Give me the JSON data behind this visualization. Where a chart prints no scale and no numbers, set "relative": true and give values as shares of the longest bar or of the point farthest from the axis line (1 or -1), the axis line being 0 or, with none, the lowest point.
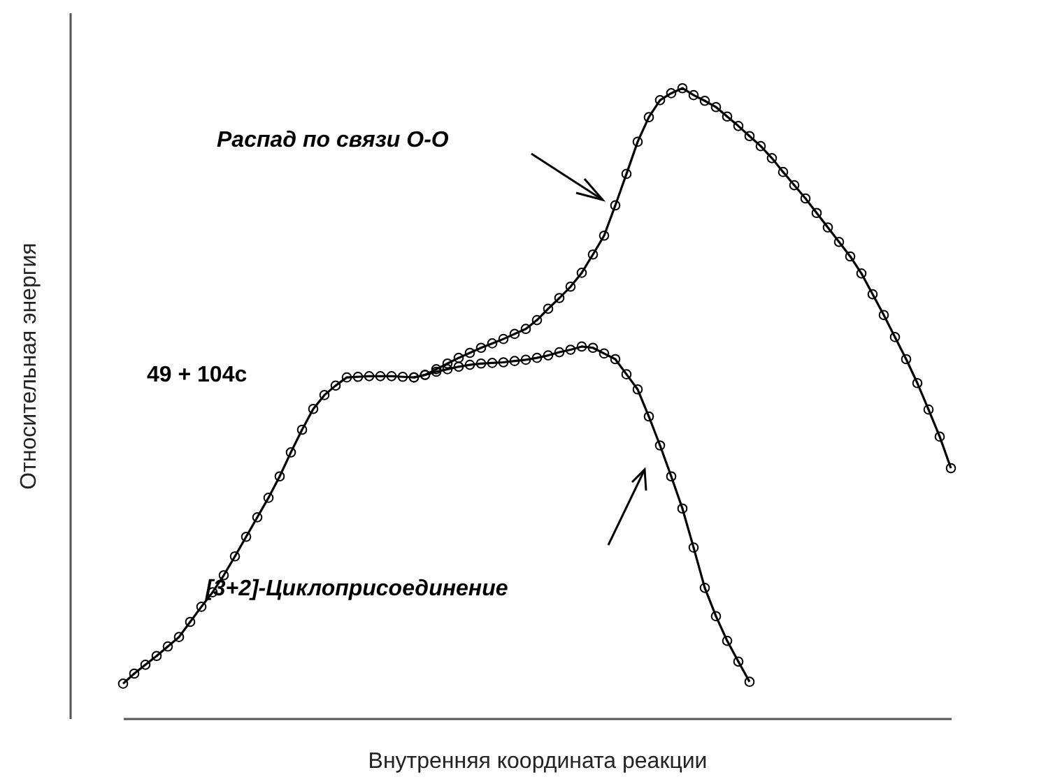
{
  "chart_data": {
    "type": "line",
    "relative": true,
    "xlabel": "Внутренняя координата реакции",
    "ylabel": "Относительная энергия",
    "marker": "circle",
    "line_style": "solid",
    "grid": false,
    "categories": [
      null,
      null,
      null,
      null,
      null,
      null,
      null,
      null,
      null,
      null,
      null,
      null,
      null,
      null,
      null,
      null,
      null,
      null,
      null,
      null,
      null,
      null,
      null,
      null,
      null,
      null,
      null,
      null,
      null,
      null,
      null,
      null,
      null,
      null,
      null,
      null,
      null,
      null,
      null,
      null,
      null,
      null,
      null,
      null,
      null,
      null,
      null,
      null,
      null,
      null,
      null,
      null,
      null,
      null,
      null,
      null,
      null,
      null,
      null,
      null,
      null,
      null,
      null,
      null,
      null,
      null,
      null,
      null,
      null,
      null,
      null,
      null,
      null,
      null,
      null
    ],
    "series": [
      {
        "color": "#000000",
        "values": [
          0.055,
          0.071,
          0.085,
          0.099,
          0.114,
          0.129,
          0.153,
          0.177,
          0.2,
          0.227,
          0.257,
          0.288,
          0.319,
          0.35,
          0.384,
          0.422,
          0.458,
          0.491,
          0.513,
          0.528,
          0.541,
          0.542,
          0.543,
          0.543,
          0.543,
          0.542,
          0.541,
          0.545,
          0.554,
          0.563,
          0.572,
          0.58,
          0.588,
          0.595,
          0.602,
          0.61,
          0.618,
          0.632,
          0.65,
          0.667,
          0.685,
          0.707,
          0.736,
          0.766,
          0.814,
          0.864,
          0.915,
          0.954,
          0.981,
          0.992,
          1,
          0.989,
          0.98,
          0.97,
          0.955,
          0.94,
          0.924,
          0.908,
          0.889,
          0.867,
          0.846,
          0.825,
          0.802,
          0.779,
          0.756,
          0.733,
          0.706,
          0.673,
          0.64,
          0.605,
          0.57,
          0.532,
          0.49,
          0.447,
          0.397
        ]
      },
      {
        "color": "#000000",
        "values": [
          null,
          null,
          null,
          null,
          null,
          null,
          null,
          null,
          null,
          null,
          null,
          null,
          null,
          null,
          null,
          null,
          null,
          null,
          null,
          null,
          null,
          null,
          null,
          null,
          null,
          null,
          0.541,
          0.545,
          0.55,
          0.554,
          0.558,
          0.561,
          0.563,
          0.564,
          0.565,
          0.567,
          0.569,
          0.572,
          0.576,
          0.581,
          0.585,
          0.59,
          0.588,
          0.579,
          0.57,
          0.546,
          0.522,
          0.479,
          0.433,
          0.384,
          0.333,
          0.271,
          0.207,
          0.162,
          0.123,
          0.09,
          0.058,
          null,
          null,
          null,
          null,
          null,
          null,
          null,
          null,
          null,
          null,
          null,
          null,
          null,
          null,
          null,
          null,
          null,
          null
        ]
      }
    ],
    "annotations": [
      "Распад по связи O-O",
      "49 + 104c",
      "[3+2]-Циклоприсоединение"
    ]
  }
}
